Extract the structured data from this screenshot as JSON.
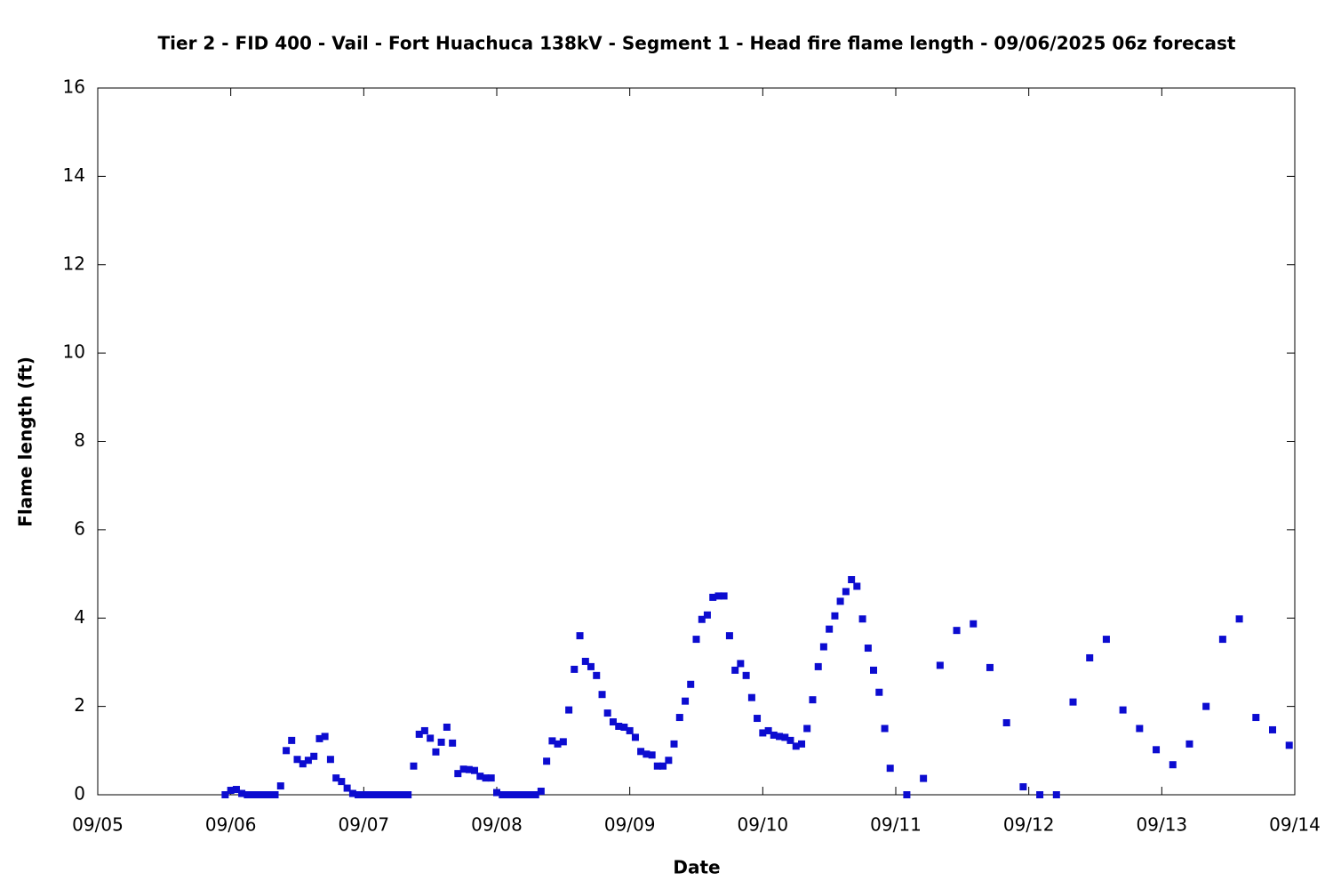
{
  "chart_data": {
    "type": "scatter",
    "title": "Tier 2 - FID 400 - Vail - Fort Huachuca 138kV - Segment 1 - Head fire flame length - 09/06/2025 06z forecast",
    "x_label": "Date",
    "y_label": "Flame length (ft)",
    "color": "#0c0cd0",
    "marker": "square",
    "xlim": [
      5,
      14
    ],
    "xticks": [
      {
        "value": 5,
        "label": "09/05"
      },
      {
        "value": 6,
        "label": "09/06"
      },
      {
        "value": 7,
        "label": "09/07"
      },
      {
        "value": 8,
        "label": "09/08"
      },
      {
        "value": 9,
        "label": "09/09"
      },
      {
        "value": 10,
        "label": "09/10"
      },
      {
        "value": 11,
        "label": "09/11"
      },
      {
        "value": 12,
        "label": "09/12"
      },
      {
        "value": 13,
        "label": "09/13"
      },
      {
        "value": 14,
        "label": "09/14"
      }
    ],
    "ylim": [
      0,
      16
    ],
    "yticks": [
      0,
      2,
      4,
      6,
      8,
      10,
      12,
      14,
      16
    ],
    "grid": false,
    "x": [
      5.958,
      6.0,
      6.042,
      6.083,
      6.125,
      6.167,
      6.208,
      6.25,
      6.292,
      6.333,
      6.375,
      6.417,
      6.458,
      6.5,
      6.542,
      6.583,
      6.625,
      6.667,
      6.708,
      6.75,
      6.792,
      6.833,
      6.875,
      6.917,
      6.958,
      7.0,
      7.042,
      7.083,
      7.125,
      7.167,
      7.208,
      7.25,
      7.292,
      7.333,
      7.375,
      7.417,
      7.458,
      7.5,
      7.542,
      7.583,
      7.625,
      7.667,
      7.708,
      7.75,
      7.792,
      7.833,
      7.875,
      7.917,
      7.958,
      8.0,
      8.042,
      8.083,
      8.125,
      8.167,
      8.208,
      8.25,
      8.292,
      8.333,
      8.375,
      8.417,
      8.458,
      8.5,
      8.542,
      8.583,
      8.625,
      8.667,
      8.708,
      8.75,
      8.792,
      8.833,
      8.875,
      8.917,
      8.958,
      9.0,
      9.042,
      9.083,
      9.125,
      9.167,
      9.208,
      9.25,
      9.292,
      9.333,
      9.375,
      9.417,
      9.458,
      9.5,
      9.542,
      9.583,
      9.625,
      9.667,
      9.708,
      9.75,
      9.792,
      9.833,
      9.875,
      9.917,
      9.958,
      10.0,
      10.042,
      10.083,
      10.125,
      10.167,
      10.208,
      10.25,
      10.292,
      10.333,
      10.375,
      10.417,
      10.458,
      10.5,
      10.542,
      10.583,
      10.625,
      10.667,
      10.708,
      10.75,
      10.792,
      10.833,
      10.875,
      10.917,
      10.958,
      11.083,
      11.208,
      11.333,
      11.458,
      11.583,
      11.708,
      11.833,
      11.958,
      12.083,
      12.208,
      12.333,
      12.458,
      12.583,
      12.708,
      12.833,
      12.958,
      13.083,
      13.208,
      13.333,
      13.458,
      13.583,
      13.708,
      13.833,
      13.958
    ],
    "values": [
      0,
      0.1,
      0.12,
      0.03,
      0,
      0,
      0,
      0,
      0,
      0,
      0.2,
      1.0,
      1.23,
      0.8,
      0.7,
      0.78,
      0.87,
      1.27,
      1.32,
      0.8,
      0.38,
      0.3,
      0.15,
      0.03,
      0,
      0,
      0,
      0,
      0,
      0,
      0,
      0,
      0,
      0,
      0.65,
      1.37,
      1.45,
      1.28,
      0.97,
      1.19,
      1.53,
      1.17,
      0.48,
      0.58,
      0.57,
      0.55,
      0.42,
      0.38,
      0.38,
      0.05,
      0,
      0,
      0,
      0,
      0,
      0,
      0,
      0.08,
      0.76,
      1.22,
      1.15,
      1.2,
      1.92,
      2.84,
      3.6,
      3.02,
      2.9,
      2.7,
      2.27,
      1.85,
      1.65,
      1.55,
      1.53,
      1.45,
      1.3,
      0.98,
      0.92,
      0.9,
      0.65,
      0.65,
      0.78,
      1.15,
      1.75,
      2.12,
      2.5,
      3.52,
      3.97,
      4.07,
      4.47,
      4.5,
      4.5,
      3.6,
      2.82,
      2.97,
      2.7,
      2.2,
      1.73,
      1.4,
      1.45,
      1.35,
      1.32,
      1.3,
      1.23,
      1.1,
      1.15,
      1.5,
      2.15,
      2.9,
      3.35,
      3.75,
      4.05,
      4.38,
      4.6,
      4.87,
      4.72,
      3.98,
      3.32,
      2.82,
      2.32,
      1.5,
      0.6,
      0,
      0.37,
      2.93,
      3.72,
      3.87,
      2.88,
      1.63,
      0.18,
      0,
      0,
      2.1,
      3.1,
      3.52,
      1.92,
      1.5,
      1.02,
      0.68,
      1.15,
      2.0,
      3.52,
      3.98,
      1.75,
      1.47,
      1.12
    ]
  }
}
